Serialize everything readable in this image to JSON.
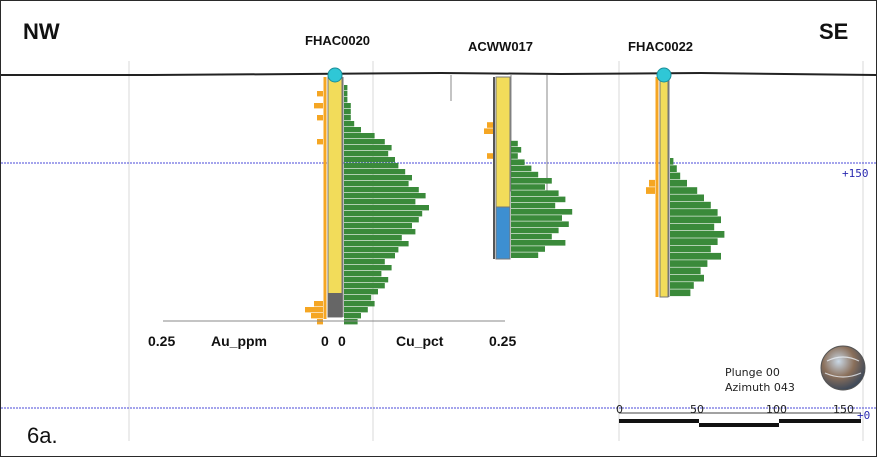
{
  "direction_left": "NW",
  "direction_right": "SE",
  "figure_label": "6a.",
  "elevation_labels": [
    "+150",
    "+0"
  ],
  "legend": {
    "au_max": "0.25",
    "au_label": "Au_ppm",
    "au_zero": "0",
    "cu_zero": "0",
    "cu_label": "Cu_pct",
    "cu_max": "0.25"
  },
  "view": {
    "plunge": "Plunge 00",
    "azimuth": "Azimuth 043"
  },
  "scale_bar": {
    "ticks": [
      "0",
      "50",
      "100",
      "150"
    ]
  },
  "drillholes": [
    {
      "id": "FHAC0020",
      "collar_marker": true,
      "cu_pct_profile": [
        0.01,
        0.01,
        0.01,
        0.02,
        0.02,
        0.02,
        0.03,
        0.05,
        0.09,
        0.12,
        0.14,
        0.13,
        0.15,
        0.16,
        0.18,
        0.2,
        0.19,
        0.22,
        0.24,
        0.21,
        0.25,
        0.23,
        0.22,
        0.2,
        0.21,
        0.17,
        0.19,
        0.16,
        0.15,
        0.12,
        0.14,
        0.11,
        0.13,
        0.12,
        0.1,
        0.08,
        0.09,
        0.07,
        0.05,
        0.04
      ],
      "au_ppm_profile": [
        0.0,
        0.02,
        0.0,
        0.03,
        0.0,
        0.02,
        0.0,
        0.0,
        0.0,
        0.02,
        0.0,
        0.0,
        0.0,
        0.0,
        0.0,
        0.0,
        0.0,
        0.0,
        0.0,
        0.0,
        0.0,
        0.0,
        0.0,
        0.0,
        0.0,
        0.0,
        0.0,
        0.0,
        0.0,
        0.0,
        0.0,
        0.0,
        0.0,
        0.0,
        0.0,
        0.0,
        0.03,
        0.06,
        0.04,
        0.02
      ]
    },
    {
      "id": "ACWW017",
      "collar_marker": false,
      "cu_pct_profile": [
        0.0,
        0.0,
        0.0,
        0.0,
        0.0,
        0.0,
        0.0,
        0.0,
        0.0,
        0.02,
        0.03,
        0.02,
        0.04,
        0.06,
        0.08,
        0.12,
        0.1,
        0.14,
        0.16,
        0.13,
        0.18,
        0.15,
        0.17,
        0.14,
        0.12,
        0.16,
        0.1,
        0.08
      ],
      "au_ppm_profile": [
        0.0,
        0.0,
        0.0,
        0.0,
        0.0,
        0.0,
        0.02,
        0.03,
        0.0,
        0.0,
        0.0,
        0.02,
        0.0,
        0.0,
        0.0,
        0.0,
        0.0,
        0.0,
        0.0,
        0.0,
        0.0,
        0.0,
        0.0,
        0.0,
        0.0,
        0.0,
        0.0,
        0.0
      ]
    },
    {
      "id": "FHAC0022",
      "collar_marker": true,
      "cu_pct_profile": [
        0.0,
        0.0,
        0.0,
        0.0,
        0.0,
        0.0,
        0.0,
        0.0,
        0.0,
        0.0,
        0.01,
        0.02,
        0.03,
        0.05,
        0.08,
        0.1,
        0.12,
        0.14,
        0.15,
        0.13,
        0.16,
        0.14,
        0.12,
        0.15,
        0.11,
        0.09,
        0.1,
        0.07,
        0.06
      ],
      "au_ppm_profile": [
        0.0,
        0.0,
        0.0,
        0.0,
        0.0,
        0.0,
        0.0,
        0.0,
        0.0,
        0.0,
        0.0,
        0.0,
        0.0,
        0.02,
        0.03,
        0.0,
        0.0,
        0.0,
        0.0,
        0.0,
        0.0,
        0.0,
        0.0,
        0.0,
        0.0,
        0.0,
        0.0,
        0.0,
        0.0
      ]
    }
  ],
  "colors": {
    "cu_bar": "#3a8a3a",
    "au_bar": "#f5a623",
    "hole_fill": "#f2dc5a",
    "hole_fill_lower": "#3d8fd1",
    "collar": "#2fc7d6",
    "elevation_line": "#4a4ad8",
    "topography": "#222222"
  }
}
